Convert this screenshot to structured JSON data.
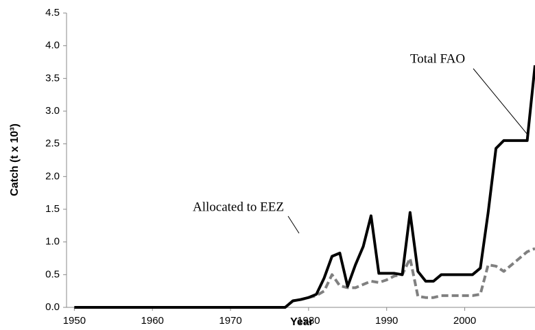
{
  "chart_data": {
    "type": "line",
    "x": [
      1950,
      1951,
      1952,
      1953,
      1954,
      1955,
      1956,
      1957,
      1958,
      1959,
      1960,
      1961,
      1962,
      1963,
      1964,
      1965,
      1966,
      1967,
      1968,
      1969,
      1970,
      1971,
      1972,
      1973,
      1974,
      1975,
      1976,
      1977,
      1978,
      1979,
      1980,
      1981,
      1982,
      1983,
      1984,
      1985,
      1986,
      1987,
      1988,
      1989,
      1990,
      1991,
      1992,
      1993,
      1994,
      1995,
      1996,
      1997,
      1998,
      1999,
      2000,
      2001,
      2002,
      2003,
      2004,
      2005,
      2006,
      2007,
      2008,
      2009
    ],
    "series": [
      {
        "name": "Total FAO",
        "color": "#000000",
        "dash": false,
        "values": [
          0,
          0,
          0,
          0,
          0,
          0,
          0,
          0,
          0,
          0,
          0,
          0,
          0,
          0,
          0,
          0,
          0,
          0,
          0,
          0,
          0,
          0,
          0,
          0,
          0,
          0,
          0,
          0,
          0.1,
          0.12,
          0.15,
          0.2,
          0.45,
          0.78,
          0.83,
          0.32,
          0.65,
          0.93,
          1.4,
          0.52,
          0.52,
          0.52,
          0.5,
          1.45,
          0.55,
          0.4,
          0.4,
          0.5,
          0.5,
          0.5,
          0.5,
          0.5,
          0.6,
          1.45,
          2.43,
          2.55,
          2.55,
          2.55,
          2.55,
          3.7
        ]
      },
      {
        "name": "Allocated to EEZ",
        "color": "#808080",
        "dash": true,
        "values": [
          0,
          0,
          0,
          0,
          0,
          0,
          0,
          0,
          0,
          0,
          0,
          0,
          0,
          0,
          0,
          0,
          0,
          0,
          0,
          0,
          0,
          0,
          0,
          0,
          0,
          0,
          0,
          0,
          0.1,
          0.12,
          0.15,
          0.18,
          0.25,
          0.5,
          0.33,
          0.3,
          0.3,
          0.35,
          0.4,
          0.38,
          0.42,
          0.48,
          0.5,
          0.75,
          0.17,
          0.15,
          0.15,
          0.18,
          0.18,
          0.18,
          0.18,
          0.18,
          0.2,
          0.65,
          0.63,
          0.55,
          0.65,
          0.75,
          0.85,
          0.9
        ]
      }
    ],
    "xlim": [
      1949,
      2009
    ],
    "xticks": [
      1950,
      1960,
      1970,
      1980,
      1990,
      2000
    ],
    "ylim": [
      0,
      4.5
    ],
    "yticks": [
      {
        "value": 0,
        "label": "0.0"
      },
      {
        "value": 0.5,
        "label": "0.5"
      },
      {
        "value": 1,
        "label": "1.0"
      },
      {
        "value": 1.5,
        "label": "1.5"
      },
      {
        "value": 2,
        "label": "2.0"
      },
      {
        "value": 2.5,
        "label": "2.5"
      },
      {
        "value": 3,
        "label": "3.0"
      },
      {
        "value": 3.5,
        "label": "3.5"
      },
      {
        "value": 4,
        "label": "4.0"
      },
      {
        "value": 4.5,
        "label": "4.5"
      }
    ],
    "xlabel": "Year",
    "ylabel": "Catch (t x 10³)",
    "grid": false
  }
}
